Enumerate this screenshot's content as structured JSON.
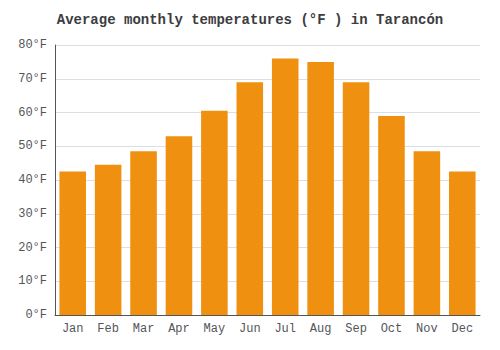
{
  "chart_data": {
    "type": "bar",
    "title": "Average monthly temperatures (°F ) in Tarancón",
    "categories": [
      "Jan",
      "Feb",
      "Mar",
      "Apr",
      "May",
      "Jun",
      "Jul",
      "Aug",
      "Sep",
      "Oct",
      "Nov",
      "Dec"
    ],
    "values": [
      42.5,
      44.5,
      48.5,
      53,
      60.5,
      69,
      76,
      75,
      69,
      59,
      48.5,
      42.5
    ],
    "color": "#F09010",
    "ylim": [
      0,
      80
    ],
    "yticks": [
      {
        "value": 0,
        "label": "0°F"
      },
      {
        "value": 10,
        "label": "10°F"
      },
      {
        "value": 20,
        "label": "20°F"
      },
      {
        "value": 30,
        "label": "30°F"
      },
      {
        "value": 40,
        "label": "40°F"
      },
      {
        "value": 50,
        "label": "50°F"
      },
      {
        "value": 60,
        "label": "60°F"
      },
      {
        "value": 70,
        "label": "70°F"
      },
      {
        "value": 80,
        "label": "80°F"
      }
    ],
    "grid": true
  }
}
